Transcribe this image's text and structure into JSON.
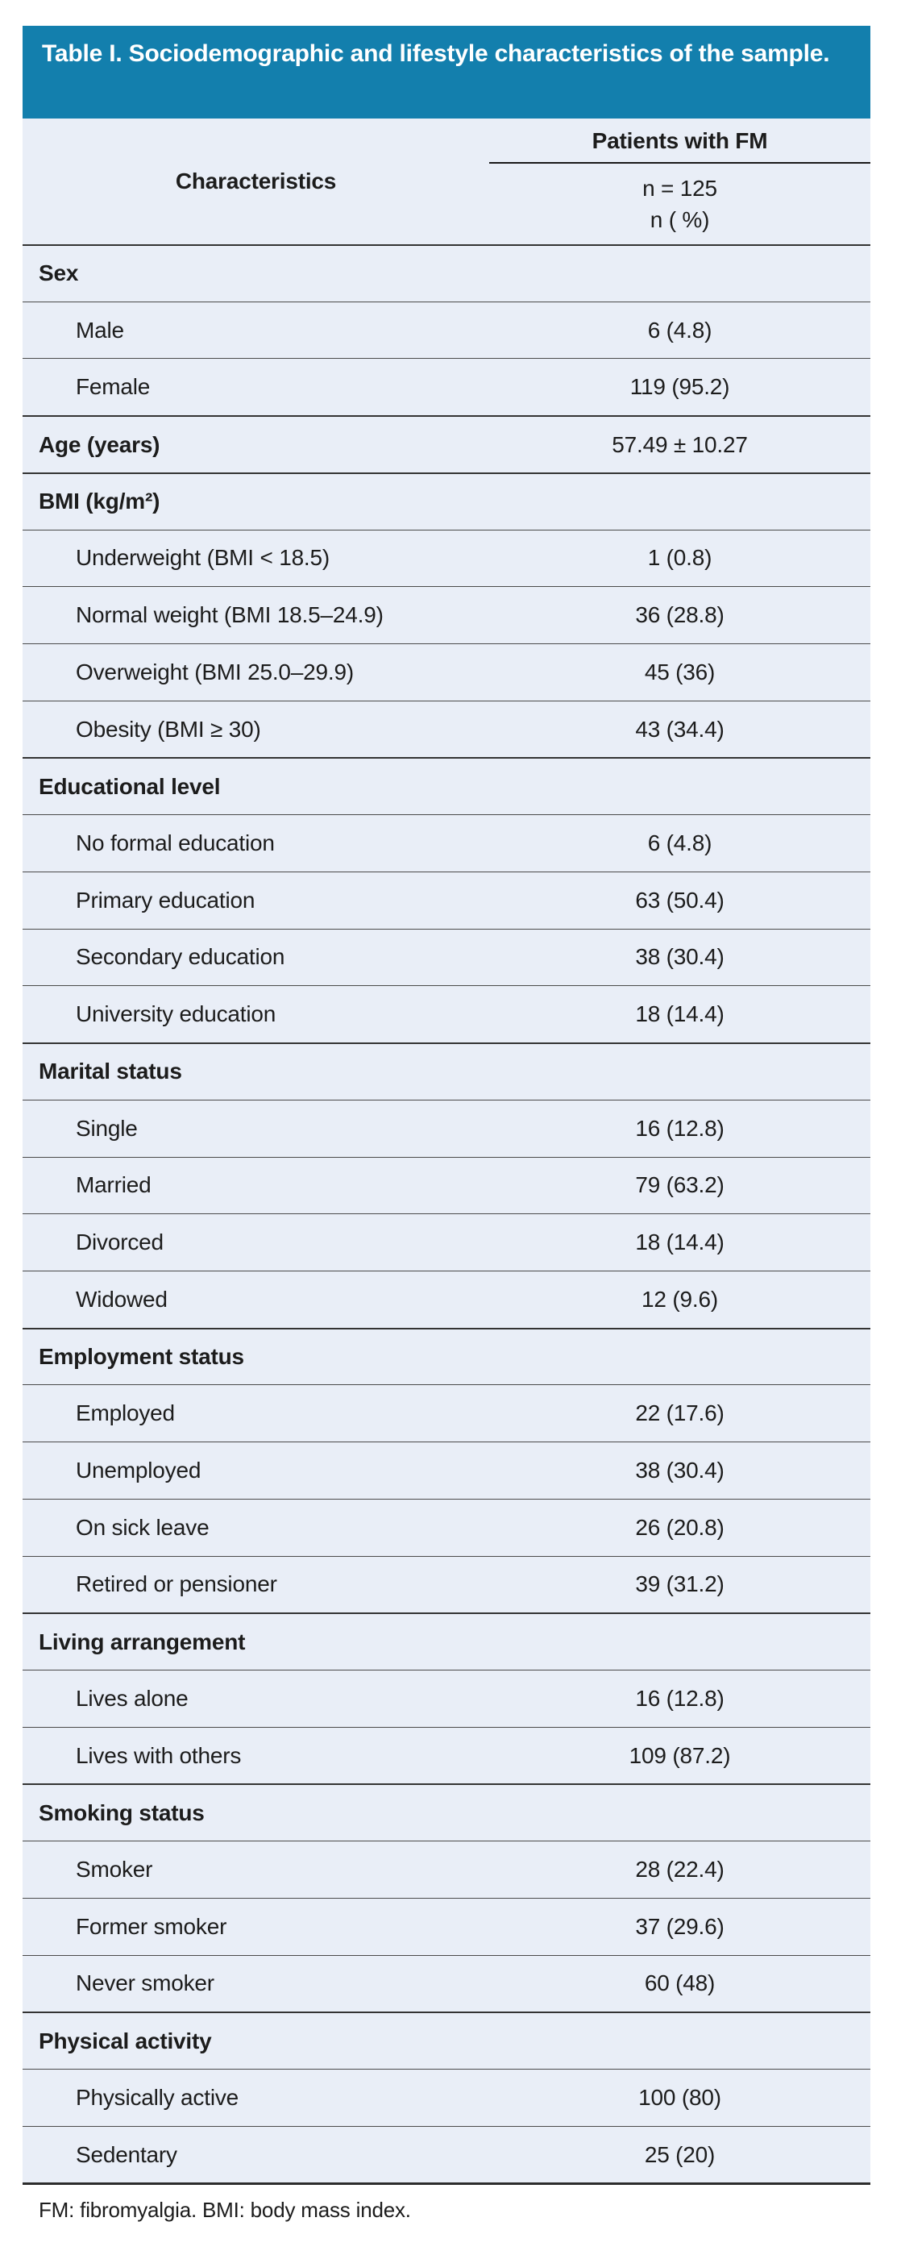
{
  "title": "Table I. Sociodemographic and lifestyle characteristics of the sample.",
  "header": {
    "characteristics_label": "Characteristics",
    "group_label": "Patients with FM",
    "n_line1": "n = 125",
    "n_line2": "n ( %)"
  },
  "rows": [
    {
      "label": "Sex",
      "value": "",
      "kind": "section"
    },
    {
      "label": "Male",
      "value": "6 (4.8)",
      "kind": "item"
    },
    {
      "label": "Female",
      "value": "119 (95.2)",
      "kind": "item"
    },
    {
      "label": "Age (years)",
      "value": "57.49 ± 10.27",
      "kind": "section"
    },
    {
      "label": "BMI (kg/m²)",
      "value": "",
      "kind": "section"
    },
    {
      "label": "Underweight (BMI < 18.5)",
      "value": "1 (0.8)",
      "kind": "item"
    },
    {
      "label": "Normal weight (BMI 18.5–24.9)",
      "value": "36 (28.8)",
      "kind": "item"
    },
    {
      "label": "Overweight (BMI 25.0–29.9)",
      "value": "45 (36)",
      "kind": "item"
    },
    {
      "label": "Obesity (BMI ≥ 30)",
      "value": "43 (34.4)",
      "kind": "item"
    },
    {
      "label": "Educational level",
      "value": "",
      "kind": "section"
    },
    {
      "label": "No formal education",
      "value": "6 (4.8)",
      "kind": "item"
    },
    {
      "label": "Primary education",
      "value": "63 (50.4)",
      "kind": "item"
    },
    {
      "label": "Secondary education",
      "value": "38 (30.4)",
      "kind": "item"
    },
    {
      "label": "University education",
      "value": "18 (14.4)",
      "kind": "item"
    },
    {
      "label": "Marital status",
      "value": "",
      "kind": "section"
    },
    {
      "label": "Single",
      "value": "16 (12.8)",
      "kind": "item"
    },
    {
      "label": "Married",
      "value": "79 (63.2)",
      "kind": "item"
    },
    {
      "label": "Divorced",
      "value": "18 (14.4)",
      "kind": "item"
    },
    {
      "label": "Widowed",
      "value": "12 (9.6)",
      "kind": "item"
    },
    {
      "label": "Employment status",
      "value": "",
      "kind": "section"
    },
    {
      "label": "Employed",
      "value": "22 (17.6)",
      "kind": "item"
    },
    {
      "label": "Unemployed",
      "value": "38 (30.4)",
      "kind": "item"
    },
    {
      "label": "On sick leave",
      "value": "26 (20.8)",
      "kind": "item"
    },
    {
      "label": "Retired or pensioner",
      "value": "39 (31.2)",
      "kind": "item"
    },
    {
      "label": "Living arrangement",
      "value": "",
      "kind": "section"
    },
    {
      "label": "Lives alone",
      "value": "16 (12.8)",
      "kind": "item"
    },
    {
      "label": "Lives with others",
      "value": "109 (87.2)",
      "kind": "item"
    },
    {
      "label": "Smoking status",
      "value": "",
      "kind": "section"
    },
    {
      "label": "Smoker",
      "value": "28 (22.4)",
      "kind": "item"
    },
    {
      "label": "Former smoker",
      "value": "37 (29.6)",
      "kind": "item"
    },
    {
      "label": "Never smoker",
      "value": "60 (48)",
      "kind": "item"
    },
    {
      "label": "Physical activity",
      "value": "",
      "kind": "section"
    },
    {
      "label": "Physically active",
      "value": "100 (80)",
      "kind": "item"
    },
    {
      "label": "Sedentary",
      "value": "25 (20)",
      "kind": "item"
    }
  ],
  "footnote": "FM: fibromyalgia. BMI: body mass index.",
  "colors": {
    "header_bg": "#137fad",
    "body_bg": "#e9eef7"
  }
}
